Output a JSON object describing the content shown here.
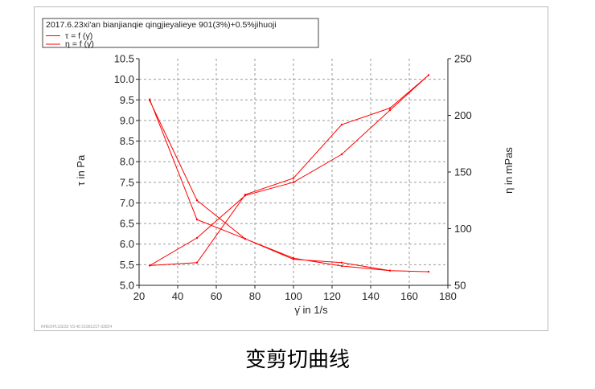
{
  "caption": "变剪切曲线",
  "watermark": "RHEOPLUS/32 V3.40 21001217-33024",
  "chart_data": {
    "type": "line",
    "title": "",
    "legend": {
      "title": "2017.6.23xi'an bianjianqie qingjieyalieye 901(3%)+0.5%jihuoji",
      "placement": "top-left",
      "entries": [
        "τ = f (γ̇)",
        "η = f (γ̇)"
      ]
    },
    "xlabel": "γ̇ in 1/s",
    "ylabel_left": "τ in Pa",
    "ylabel_right": "η in mPas",
    "xlim": [
      20,
      180
    ],
    "ylim_left": [
      5.0,
      10.5
    ],
    "ylim_right": [
      50,
      250
    ],
    "x_ticks": [
      20,
      40,
      60,
      80,
      100,
      120,
      140,
      160,
      180
    ],
    "y_left_ticks": [
      "5.0",
      "5.5",
      "6.0",
      "6.5",
      "7.0",
      "7.5",
      "8.0",
      "8.5",
      "9.0",
      "9.5",
      "10.0",
      "10.5"
    ],
    "y_right_ticks": [
      "50",
      "100",
      "150",
      "200",
      "250"
    ],
    "grid": true,
    "color": "#ff0000",
    "series": [
      {
        "name": "τ = f (γ̇)",
        "axis": "left",
        "x": [
          25.5,
          50,
          75,
          100,
          125,
          150,
          170,
          150,
          125,
          100,
          75,
          50,
          25.5
        ],
        "y": [
          5.48,
          5.55,
          7.2,
          7.6,
          8.9,
          9.3,
          10.1,
          9.25,
          8.18,
          7.5,
          7.18,
          6.15,
          5.48
        ]
      },
      {
        "name": "η = f (γ̇)",
        "axis": "right",
        "x": [
          25.5,
          50,
          75,
          100,
          125,
          150,
          170,
          150,
          125,
          100,
          75,
          50,
          25.5
        ],
        "y": [
          214,
          108,
          91,
          73,
          70,
          63,
          62,
          63,
          67,
          74,
          91,
          125,
          213
        ]
      }
    ]
  }
}
